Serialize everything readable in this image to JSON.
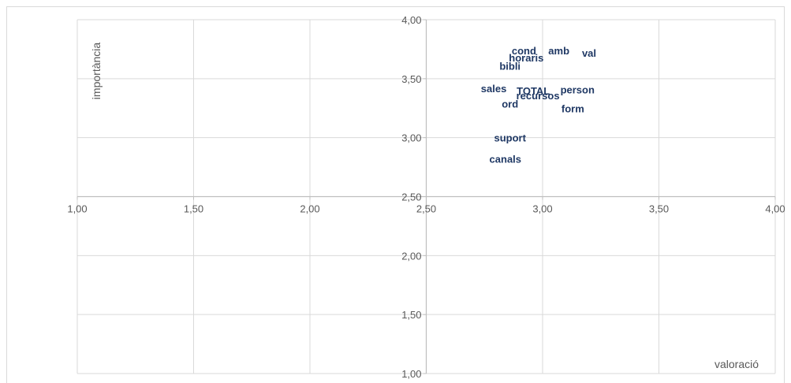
{
  "chart_data": {
    "type": "scatter",
    "title": "",
    "xlabel": "valoració",
    "ylabel": "importància",
    "xlim": [
      1.0,
      4.0
    ],
    "ylim": [
      1.0,
      4.0
    ],
    "x_ticks": [
      1.0,
      1.5,
      2.0,
      2.5,
      3.0,
      3.5,
      4.0
    ],
    "y_ticks": [
      1.0,
      1.5,
      2.0,
      2.5,
      3.0,
      3.5,
      4.0
    ],
    "x_tick_labels": [
      "1,00",
      "1,50",
      "2,00",
      "2,50",
      "3,00",
      "3,50",
      "4,00"
    ],
    "y_tick_labels": [
      "1,00",
      "1,50",
      "2,00",
      "2,50",
      "3,00",
      "3,50",
      "4,00"
    ],
    "axis_cross": {
      "x": 2.5,
      "y": 2.5
    },
    "grid": true,
    "points": [
      {
        "label": "cond",
        "x": 2.92,
        "y": 3.74
      },
      {
        "label": "amb",
        "x": 3.07,
        "y": 3.74
      },
      {
        "label": "val",
        "x": 3.2,
        "y": 3.72
      },
      {
        "label": "horaris",
        "x": 2.93,
        "y": 3.68
      },
      {
        "label": "bibli",
        "x": 2.86,
        "y": 3.61
      },
      {
        "label": "sales",
        "x": 2.79,
        "y": 3.42
      },
      {
        "label": "TOTAL",
        "x": 2.96,
        "y": 3.4
      },
      {
        "label": "person",
        "x": 3.15,
        "y": 3.41
      },
      {
        "label": "recursos",
        "x": 2.98,
        "y": 3.36
      },
      {
        "label": "ord",
        "x": 2.86,
        "y": 3.29
      },
      {
        "label": "form",
        "x": 3.13,
        "y": 3.25
      },
      {
        "label": "suport",
        "x": 2.86,
        "y": 3.0
      },
      {
        "label": "canals",
        "x": 2.84,
        "y": 2.82
      }
    ],
    "colors": {
      "label": "#1f3864",
      "grid": "#d9d9d9",
      "axis": "#bfbfbf",
      "tick": "#595959"
    }
  }
}
